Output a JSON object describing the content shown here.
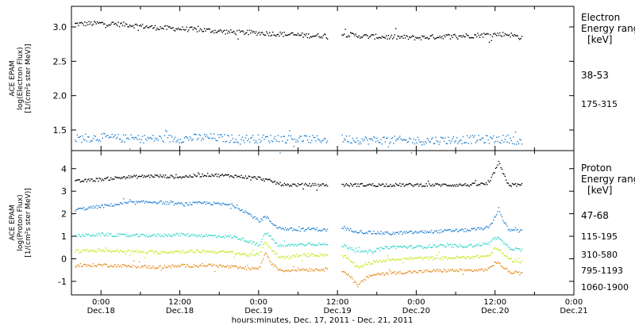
{
  "xaxis": {
    "label": "hours:minutes, Dec. 17, 2011 - Dec. 21, 2011",
    "start_hour": 0,
    "ticks": [
      {
        "time": "0:00",
        "date": "Dec.18",
        "hour": 0
      },
      {
        "time": "12:00",
        "date": "Dec.18",
        "hour": 12
      },
      {
        "time": "0:00",
        "date": "Dec.19",
        "hour": 24
      },
      {
        "time": "12:00",
        "date": "Dec.19",
        "hour": 36
      },
      {
        "time": "0:00",
        "date": "Dec.20",
        "hour": 48
      },
      {
        "time": "12:00",
        "date": "Dec.20",
        "hour": 60
      },
      {
        "time": "0:00",
        "date": "Dec.21",
        "hour": 72
      }
    ]
  },
  "chart_data": [
    {
      "type": "scatter",
      "panel": "electron",
      "ylabel_lines": [
        "ACE EPAM",
        "log(Electron Flux)",
        "[1/(cm²s ster MeV)]"
      ],
      "ylim": [
        1.2,
        3.3
      ],
      "yticks": [
        "1.5",
        "2.0",
        "2.5",
        "3.0"
      ],
      "legend_title": [
        "Electron",
        "Energy ranges",
        "[keV]"
      ],
      "x_range_hours": [
        -4.5,
        72
      ],
      "data_gap_hours": [
        [
          34.5,
          36.5
        ]
      ],
      "series": [
        {
          "name": "38-53",
          "color": "#000000",
          "x": [
            -4,
            0,
            4,
            8,
            12,
            16,
            20,
            24,
            28,
            32,
            34,
            37,
            40,
            44,
            48,
            52,
            56,
            60,
            62,
            64
          ],
          "y": [
            3.05,
            3.06,
            3.04,
            3.0,
            2.98,
            2.96,
            2.93,
            2.92,
            2.9,
            2.88,
            2.88,
            2.9,
            2.87,
            2.86,
            2.85,
            2.87,
            2.88,
            2.9,
            2.9,
            2.85
          ]
        },
        {
          "name": "175-315",
          "color": "#1f7fd0",
          "x": [
            -4,
            0,
            4,
            8,
            12,
            16,
            20,
            24,
            28,
            32,
            34,
            37,
            40,
            44,
            48,
            52,
            56,
            60,
            62,
            64
          ],
          "y": [
            1.38,
            1.4,
            1.38,
            1.38,
            1.38,
            1.4,
            1.38,
            1.38,
            1.38,
            1.37,
            1.37,
            1.38,
            1.36,
            1.36,
            1.35,
            1.36,
            1.37,
            1.37,
            1.38,
            1.34
          ]
        }
      ]
    },
    {
      "type": "scatter",
      "panel": "proton",
      "ylabel_lines": [
        "ACE EPAM",
        "log(Proton Flux)",
        "[1/(cm²s ster MeV)]"
      ],
      "ylim": [
        -1.6,
        4.8
      ],
      "yticks": [
        "-1",
        "0",
        "1",
        "2",
        "3",
        "4"
      ],
      "legend_title": [
        "Proton",
        "Energy ranges",
        "[keV]"
      ],
      "x_range_hours": [
        -4.5,
        72
      ],
      "data_gap_hours": [
        [
          34.5,
          36.5
        ]
      ],
      "series": [
        {
          "name": "47-68",
          "color": "#000000",
          "x": [
            -4,
            0,
            4,
            8,
            12,
            16,
            20,
            24,
            26,
            27,
            28,
            30,
            32,
            34,
            37,
            40,
            44,
            48,
            52,
            56,
            59,
            60,
            60.5,
            61,
            62,
            64
          ],
          "y": [
            3.45,
            3.55,
            3.65,
            3.7,
            3.65,
            3.75,
            3.7,
            3.6,
            3.45,
            3.35,
            3.3,
            3.3,
            3.3,
            3.3,
            3.3,
            3.3,
            3.3,
            3.3,
            3.3,
            3.3,
            3.35,
            4.0,
            4.3,
            3.9,
            3.3,
            3.3
          ]
        },
        {
          "name": "115-195",
          "color": "#1f7fd0",
          "x": [
            -4,
            0,
            4,
            8,
            12,
            16,
            20,
            22,
            24,
            25,
            26,
            27,
            28,
            30,
            32,
            34,
            37,
            40,
            44,
            48,
            52,
            56,
            59,
            60,
            60.5,
            61,
            62,
            64
          ],
          "y": [
            2.2,
            2.35,
            2.5,
            2.55,
            2.45,
            2.5,
            2.4,
            2.1,
            1.7,
            1.9,
            1.6,
            1.4,
            1.35,
            1.3,
            1.35,
            1.3,
            1.35,
            1.2,
            1.15,
            1.2,
            1.25,
            1.3,
            1.4,
            1.9,
            2.3,
            1.8,
            1.3,
            1.25
          ]
        },
        {
          "name": "310-580",
          "color": "#33d6c8",
          "x": [
            -4,
            0,
            4,
            8,
            12,
            16,
            20,
            22,
            24,
            25,
            26,
            27,
            28,
            30,
            32,
            34,
            37,
            38,
            40,
            44,
            48,
            52,
            56,
            59,
            60,
            61,
            62,
            64
          ],
          "y": [
            1.05,
            1.1,
            1.05,
            1.05,
            1.1,
            1.05,
            1.0,
            0.85,
            0.6,
            1.2,
            0.9,
            0.6,
            0.6,
            0.65,
            0.7,
            0.65,
            0.6,
            0.5,
            0.3,
            0.55,
            0.55,
            0.6,
            0.6,
            0.7,
            1.0,
            0.8,
            0.5,
            0.4
          ]
        },
        {
          "name": "795-1193",
          "color": "#c8e619",
          "x": [
            -4,
            0,
            4,
            8,
            12,
            16,
            20,
            22,
            24,
            25,
            26,
            27,
            28,
            30,
            32,
            34,
            37,
            38,
            39,
            40,
            44,
            48,
            52,
            56,
            59,
            60,
            61,
            62,
            64
          ],
          "y": [
            0.35,
            0.4,
            0.35,
            0.3,
            0.35,
            0.35,
            0.3,
            0.2,
            0.2,
            0.8,
            0.4,
            0.1,
            0.1,
            0.15,
            0.2,
            0.2,
            0.15,
            -0.1,
            -0.4,
            -0.2,
            0.0,
            0.05,
            0.05,
            0.1,
            0.15,
            0.5,
            0.3,
            0.0,
            -0.1
          ]
        },
        {
          "name": "1060-1900",
          "color": "#e88a1a",
          "x": [
            -4,
            0,
            4,
            8,
            12,
            16,
            20,
            22,
            24,
            25,
            26,
            27,
            28,
            30,
            32,
            34,
            37,
            38,
            39,
            40,
            41,
            44,
            48,
            52,
            56,
            59,
            60,
            61,
            62,
            64
          ],
          "y": [
            -0.3,
            -0.25,
            -0.3,
            -0.35,
            -0.3,
            -0.25,
            -0.35,
            -0.4,
            -0.4,
            0.3,
            -0.2,
            -0.45,
            -0.5,
            -0.45,
            -0.45,
            -0.45,
            -0.5,
            -0.8,
            -1.2,
            -0.9,
            -0.7,
            -0.6,
            -0.55,
            -0.5,
            -0.5,
            -0.45,
            -0.1,
            -0.3,
            -0.55,
            -0.65
          ]
        }
      ]
    }
  ]
}
